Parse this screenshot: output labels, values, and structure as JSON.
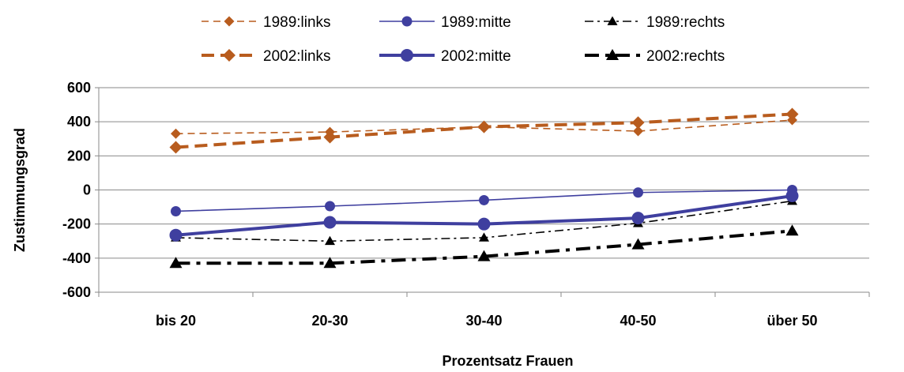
{
  "chart_data": {
    "type": "line",
    "xlabel": "Prozentsatz Frauen",
    "ylabel": "Zustimmungsgrad",
    "categories": [
      "bis 20",
      "20-30",
      "30-40",
      "40-50",
      "über 50"
    ],
    "ylim": [
      -600,
      600
    ],
    "yticks": [
      600,
      400,
      200,
      0,
      -200,
      -400,
      -600
    ],
    "grid": true,
    "legend": "top",
    "series": [
      {
        "name": "1989:links",
        "values": [
          330,
          340,
          370,
          345,
          410
        ],
        "color": "#B85C1E",
        "marker": "diamond",
        "dash": "dash",
        "weight": "thin"
      },
      {
        "name": "1989:mitte",
        "values": [
          -125,
          -95,
          -60,
          -15,
          0
        ],
        "color": "#3F3F9F",
        "marker": "circle",
        "dash": "solid",
        "weight": "thin"
      },
      {
        "name": "1989:rechts",
        "values": [
          -280,
          -300,
          -280,
          -195,
          -65
        ],
        "color": "#000000",
        "marker": "triangle",
        "dash": "dashdot",
        "weight": "thin"
      },
      {
        "name": "2002:links",
        "values": [
          250,
          310,
          370,
          395,
          445
        ],
        "color": "#B85C1E",
        "marker": "diamond",
        "dash": "dash",
        "weight": "thick"
      },
      {
        "name": "2002:mitte",
        "values": [
          -265,
          -190,
          -200,
          -165,
          -35
        ],
        "color": "#3F3F9F",
        "marker": "circle",
        "dash": "solid",
        "weight": "thick"
      },
      {
        "name": "2002:rechts",
        "values": [
          -430,
          -430,
          -390,
          -320,
          -240
        ],
        "color": "#000000",
        "marker": "triangle",
        "dash": "longdashdot",
        "weight": "thick"
      }
    ]
  }
}
